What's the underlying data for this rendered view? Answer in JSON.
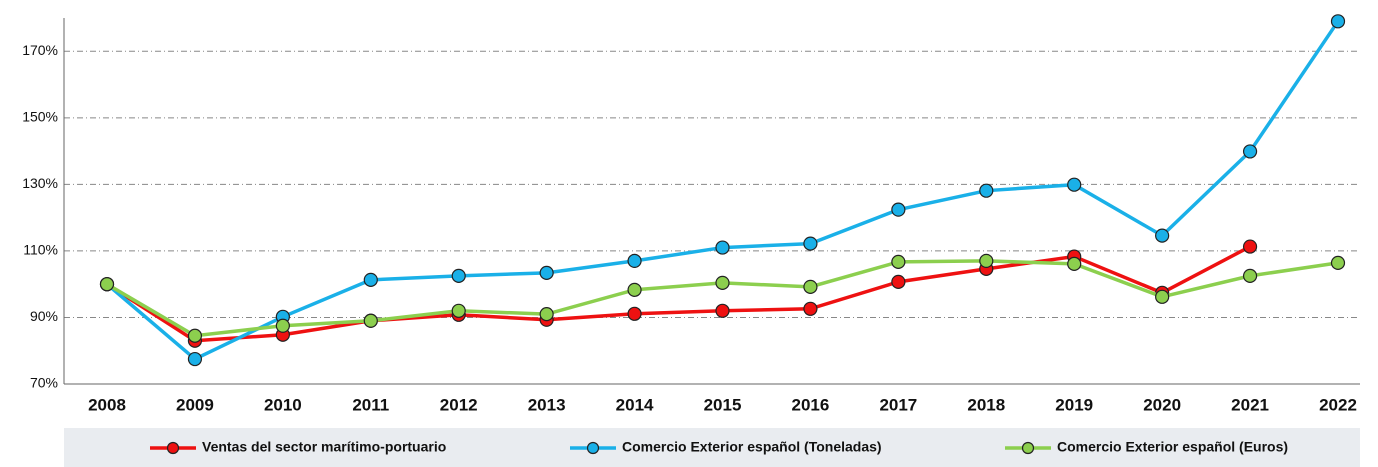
{
  "chart_data": {
    "type": "line",
    "categories": [
      "2008",
      "2009",
      "2010",
      "2011",
      "2012",
      "2013",
      "2014",
      "2015",
      "2016",
      "2017",
      "2018",
      "2019",
      "2020",
      "2021",
      "2022"
    ],
    "series": [
      {
        "name": "Ventas del sector marítimo-portuario",
        "color": "#ee1111",
        "values": [
          100,
          83,
          84.8,
          89,
          90.8,
          89.3,
          91.1,
          92,
          92.6,
          100.7,
          104.6,
          108.3,
          97.4,
          111.3,
          null
        ]
      },
      {
        "name": "Comercio Exterior español (Toneladas)",
        "color": "#1ab0e8",
        "values": [
          100,
          77.5,
          90.2,
          101.3,
          102.5,
          103.4,
          107,
          111,
          112.2,
          122.4,
          128.1,
          129.9,
          114.6,
          139.9,
          179
        ]
      },
      {
        "name": "Comercio Exterior español (Euros)",
        "color": "#8ccf4e",
        "values": [
          100,
          84.5,
          87.5,
          89,
          92,
          91,
          98.3,
          100.4,
          99.2,
          106.7,
          107,
          106.1,
          96.2,
          102.5,
          106.4
        ]
      }
    ],
    "ylim": [
      70,
      180
    ],
    "yticks": [
      {
        "value": 70,
        "label": "70%"
      },
      {
        "value": 90,
        "label": "90%"
      },
      {
        "value": 110,
        "label": "110%"
      },
      {
        "value": 130,
        "label": "130%"
      },
      {
        "value": 150,
        "label": "150%"
      },
      {
        "value": 170,
        "label": "170%"
      }
    ],
    "grid": true,
    "legend": "bottom"
  }
}
